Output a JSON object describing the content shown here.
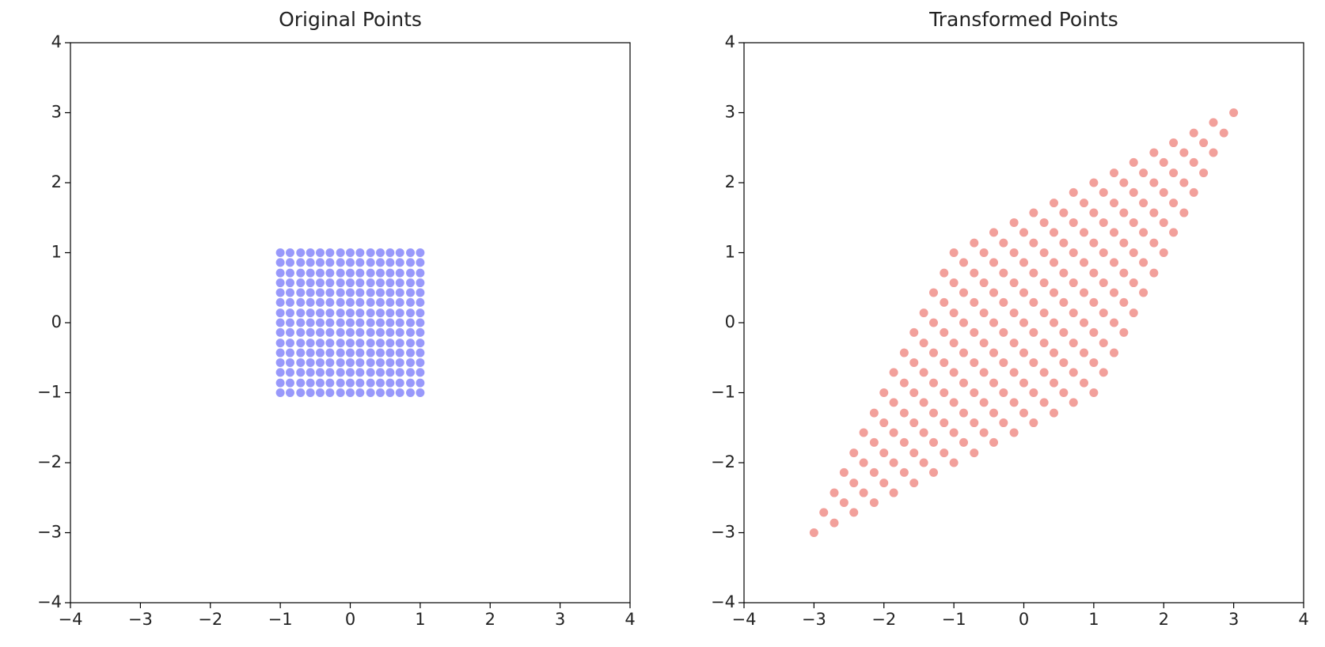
{
  "chart_data": [
    {
      "type": "scatter",
      "title": "Original Points",
      "color": "#9999fb",
      "xlim": [
        -4,
        4
      ],
      "ylim": [
        -4,
        4
      ],
      "xticks": [
        {
          "value": -4,
          "label": "−4"
        },
        {
          "value": -3,
          "label": "−3"
        },
        {
          "value": -2,
          "label": "−2"
        },
        {
          "value": -1,
          "label": "−1"
        },
        0,
        1,
        2,
        3,
        4
      ],
      "yticks": [
        {
          "value": -4,
          "label": "−4"
        },
        {
          "value": -3,
          "label": "−3"
        },
        {
          "value": -2,
          "label": "−2"
        },
        {
          "value": -1,
          "label": "−1"
        },
        0,
        1,
        2,
        3,
        4
      ],
      "x": [
        -1,
        -1,
        -1,
        -1,
        -1,
        -1,
        -1,
        -1,
        -1,
        -1,
        -1,
        -1,
        -1,
        -1,
        -1,
        -0.86,
        -0.86,
        -0.86,
        -0.86,
        -0.86,
        -0.86,
        -0.86,
        -0.86,
        -0.86,
        -0.86,
        -0.86,
        -0.86,
        -0.86,
        -0.86,
        -0.86,
        -0.71,
        -0.71,
        -0.71,
        -0.71,
        -0.71,
        -0.71,
        -0.71,
        -0.71,
        -0.71,
        -0.71,
        -0.71,
        -0.71,
        -0.71,
        -0.71,
        -0.71,
        -0.57,
        -0.57,
        -0.57,
        -0.57,
        -0.57,
        -0.57,
        -0.57,
        -0.57,
        -0.57,
        -0.57,
        -0.57,
        -0.57,
        -0.57,
        -0.57,
        -0.57,
        -0.43,
        -0.43,
        -0.43,
        -0.43,
        -0.43,
        -0.43,
        -0.43,
        -0.43,
        -0.43,
        -0.43,
        -0.43,
        -0.43,
        -0.43,
        -0.43,
        -0.43,
        -0.29,
        -0.29,
        -0.29,
        -0.29,
        -0.29,
        -0.29,
        -0.29,
        -0.29,
        -0.29,
        -0.29,
        -0.29,
        -0.29,
        -0.29,
        -0.29,
        -0.29,
        -0.14,
        -0.14,
        -0.14,
        -0.14,
        -0.14,
        -0.14,
        -0.14,
        -0.14,
        -0.14,
        -0.14,
        -0.14,
        -0.14,
        -0.14,
        -0.14,
        -0.14,
        0,
        0,
        0,
        0,
        0,
        0,
        0,
        0,
        0,
        0,
        0,
        0,
        0,
        0,
        0,
        0.14,
        0.14,
        0.14,
        0.14,
        0.14,
        0.14,
        0.14,
        0.14,
        0.14,
        0.14,
        0.14,
        0.14,
        0.14,
        0.14,
        0.14,
        0.29,
        0.29,
        0.29,
        0.29,
        0.29,
        0.29,
        0.29,
        0.29,
        0.29,
        0.29,
        0.29,
        0.29,
        0.29,
        0.29,
        0.29,
        0.43,
        0.43,
        0.43,
        0.43,
        0.43,
        0.43,
        0.43,
        0.43,
        0.43,
        0.43,
        0.43,
        0.43,
        0.43,
        0.43,
        0.43,
        0.57,
        0.57,
        0.57,
        0.57,
        0.57,
        0.57,
        0.57,
        0.57,
        0.57,
        0.57,
        0.57,
        0.57,
        0.57,
        0.57,
        0.57,
        0.71,
        0.71,
        0.71,
        0.71,
        0.71,
        0.71,
        0.71,
        0.71,
        0.71,
        0.71,
        0.71,
        0.71,
        0.71,
        0.71,
        0.71,
        0.86,
        0.86,
        0.86,
        0.86,
        0.86,
        0.86,
        0.86,
        0.86,
        0.86,
        0.86,
        0.86,
        0.86,
        0.86,
        0.86,
        0.86,
        1,
        1,
        1,
        1,
        1,
        1,
        1,
        1,
        1,
        1,
        1,
        1,
        1,
        1,
        1
      ],
      "y": [
        -1,
        -0.86,
        -0.71,
        -0.57,
        -0.43,
        -0.29,
        -0.14,
        0,
        0.14,
        0.29,
        0.43,
        0.57,
        0.71,
        0.86,
        1,
        -1,
        -0.86,
        -0.71,
        -0.57,
        -0.43,
        -0.29,
        -0.14,
        0,
        0.14,
        0.29,
        0.43,
        0.57,
        0.71,
        0.86,
        1,
        -1,
        -0.86,
        -0.71,
        -0.57,
        -0.43,
        -0.29,
        -0.14,
        0,
        0.14,
        0.29,
        0.43,
        0.57,
        0.71,
        0.86,
        1,
        -1,
        -0.86,
        -0.71,
        -0.57,
        -0.43,
        -0.29,
        -0.14,
        0,
        0.14,
        0.29,
        0.43,
        0.57,
        0.71,
        0.86,
        1,
        -1,
        -0.86,
        -0.71,
        -0.57,
        -0.43,
        -0.29,
        -0.14,
        0,
        0.14,
        0.29,
        0.43,
        0.57,
        0.71,
        0.86,
        1,
        -1,
        -0.86,
        -0.71,
        -0.57,
        -0.43,
        -0.29,
        -0.14,
        0,
        0.14,
        0.29,
        0.43,
        0.57,
        0.71,
        0.86,
        1,
        -1,
        -0.86,
        -0.71,
        -0.57,
        -0.43,
        -0.29,
        -0.14,
        0,
        0.14,
        0.29,
        0.43,
        0.57,
        0.71,
        0.86,
        1,
        -1,
        -0.86,
        -0.71,
        -0.57,
        -0.43,
        -0.29,
        -0.14,
        0,
        0.14,
        0.29,
        0.43,
        0.57,
        0.71,
        0.86,
        1,
        -1,
        -0.86,
        -0.71,
        -0.57,
        -0.43,
        -0.29,
        -0.14,
        0,
        0.14,
        0.29,
        0.43,
        0.57,
        0.71,
        0.86,
        1,
        -1,
        -0.86,
        -0.71,
        -0.57,
        -0.43,
        -0.29,
        -0.14,
        0,
        0.14,
        0.29,
        0.43,
        0.57,
        0.71,
        0.86,
        1,
        -1,
        -0.86,
        -0.71,
        -0.57,
        -0.43,
        -0.29,
        -0.14,
        0,
        0.14,
        0.29,
        0.43,
        0.57,
        0.71,
        0.86,
        1,
        -1,
        -0.86,
        -0.71,
        -0.57,
        -0.43,
        -0.29,
        -0.14,
        0,
        0.14,
        0.29,
        0.43,
        0.57,
        0.71,
        0.86,
        1,
        -1,
        -0.86,
        -0.71,
        -0.57,
        -0.43,
        -0.29,
        -0.14,
        0,
        0.14,
        0.29,
        0.43,
        0.57,
        0.71,
        0.86,
        1,
        -1,
        -0.86,
        -0.71,
        -0.57,
        -0.43,
        -0.29,
        -0.14,
        0,
        0.14,
        0.29,
        0.43,
        0.57,
        0.71,
        0.86,
        1,
        -1,
        -0.86,
        -0.71,
        -0.57,
        -0.43,
        -0.29,
        -0.14,
        0,
        0.14,
        0.29,
        0.43,
        0.57,
        0.71,
        0.86,
        1
      ]
    },
    {
      "type": "scatter",
      "title": "Transformed Points",
      "color": "#f2a09b",
      "xlim": [
        -4,
        4
      ],
      "ylim": [
        -4,
        4
      ],
      "xticks": [
        {
          "value": -4,
          "label": "−4"
        },
        {
          "value": -3,
          "label": "−3"
        },
        {
          "value": -2,
          "label": "−2"
        },
        {
          "value": -1,
          "label": "−1"
        },
        0,
        1,
        2,
        3,
        4
      ],
      "yticks": [
        {
          "value": -4,
          "label": "−4"
        },
        {
          "value": -3,
          "label": "−3"
        },
        {
          "value": -2,
          "label": "−2"
        },
        {
          "value": -1,
          "label": "−1"
        },
        0,
        1,
        2,
        3,
        4
      ],
      "x": [
        -3,
        -2.86,
        -2.71,
        -2.57,
        -2.43,
        -2.29,
        -2.14,
        -2,
        -1.86,
        -1.71,
        -1.57,
        -1.43,
        -1.29,
        -1.14,
        -1,
        -2.71,
        -2.57,
        -2.43,
        -2.29,
        -2.14,
        -2,
        -1.86,
        -1.71,
        -1.57,
        -1.43,
        -1.29,
        -1.14,
        -1,
        -0.86,
        -0.71,
        -2.43,
        -2.29,
        -2.14,
        -2,
        -1.86,
        -1.71,
        -1.57,
        -1.43,
        -1.29,
        -1.14,
        -1,
        -0.86,
        -0.71,
        -0.57,
        -0.43,
        -2.14,
        -2,
        -1.86,
        -1.71,
        -1.57,
        -1.43,
        -1.29,
        -1.14,
        -1,
        -0.86,
        -0.71,
        -0.57,
        -0.43,
        -0.29,
        -0.14,
        -1.86,
        -1.71,
        -1.57,
        -1.43,
        -1.29,
        -1.14,
        -1,
        -0.86,
        -0.71,
        -0.57,
        -0.43,
        -0.29,
        -0.14,
        0,
        0.14,
        -1.57,
        -1.43,
        -1.29,
        -1.14,
        -1,
        -0.86,
        -0.71,
        -0.57,
        -0.43,
        -0.29,
        -0.14,
        0,
        0.14,
        0.29,
        0.43,
        -1.29,
        -1.14,
        -1,
        -0.86,
        -0.71,
        -0.57,
        -0.43,
        -0.29,
        -0.14,
        0,
        0.14,
        0.29,
        0.43,
        0.57,
        0.71,
        -1,
        -0.86,
        -0.71,
        -0.57,
        -0.43,
        -0.29,
        -0.14,
        0,
        0.14,
        0.29,
        0.43,
        0.57,
        0.71,
        0.86,
        1,
        -0.71,
        -0.57,
        -0.43,
        -0.29,
        -0.14,
        0,
        0.14,
        0.29,
        0.43,
        0.57,
        0.71,
        0.86,
        1,
        1.14,
        1.29,
        -0.43,
        -0.29,
        -0.14,
        0,
        0.14,
        0.29,
        0.43,
        0.57,
        0.71,
        0.86,
        1,
        1.14,
        1.29,
        1.43,
        1.57,
        -0.14,
        0,
        0.14,
        0.29,
        0.43,
        0.57,
        0.71,
        0.86,
        1,
        1.14,
        1.29,
        1.43,
        1.57,
        1.71,
        1.86,
        0.14,
        0.29,
        0.43,
        0.57,
        0.71,
        0.86,
        1,
        1.14,
        1.29,
        1.43,
        1.57,
        1.71,
        1.86,
        2,
        2.14,
        0.43,
        0.57,
        0.71,
        0.86,
        1,
        1.14,
        1.29,
        1.43,
        1.57,
        1.71,
        1.86,
        2,
        2.14,
        2.29,
        2.43,
        0.71,
        0.86,
        1,
        1.14,
        1.29,
        1.43,
        1.57,
        1.71,
        1.86,
        2,
        2.14,
        2.29,
        2.43,
        2.57,
        2.71,
        1,
        1.14,
        1.29,
        1.43,
        1.57,
        1.71,
        1.86,
        2,
        2.14,
        2.29,
        2.43,
        2.57,
        2.71,
        2.86,
        3
      ],
      "y": [
        -3,
        -2.71,
        -2.43,
        -2.14,
        -1.86,
        -1.57,
        -1.29,
        -1,
        -0.71,
        -0.43,
        -0.14,
        0.14,
        0.43,
        0.71,
        1,
        -2.86,
        -2.57,
        -2.29,
        -2,
        -1.71,
        -1.43,
        -1.14,
        -0.86,
        -0.57,
        -0.29,
        0,
        0.29,
        0.57,
        0.86,
        1.14,
        -2.71,
        -2.43,
        -2.14,
        -1.86,
        -1.57,
        -1.29,
        -1,
        -0.71,
        -0.43,
        -0.14,
        0.14,
        0.43,
        0.71,
        1,
        1.29,
        -2.57,
        -2.29,
        -2,
        -1.71,
        -1.43,
        -1.14,
        -0.86,
        -0.57,
        -0.29,
        0,
        0.29,
        0.57,
        0.86,
        1.14,
        1.43,
        -2.43,
        -2.14,
        -1.86,
        -1.57,
        -1.29,
        -1,
        -0.71,
        -0.43,
        -0.14,
        0.14,
        0.43,
        0.71,
        1,
        1.29,
        1.57,
        -2.29,
        -2,
        -1.71,
        -1.43,
        -1.14,
        -0.86,
        -0.57,
        -0.29,
        0,
        0.29,
        0.57,
        0.86,
        1.14,
        1.43,
        1.71,
        -2.14,
        -1.86,
        -1.57,
        -1.29,
        -1,
        -0.71,
        -0.43,
        -0.14,
        0.14,
        0.43,
        0.71,
        1,
        1.29,
        1.57,
        1.86,
        -2,
        -1.71,
        -1.43,
        -1.14,
        -0.86,
        -0.57,
        -0.29,
        0,
        0.29,
        0.57,
        0.86,
        1.14,
        1.43,
        1.71,
        2,
        -1.86,
        -1.57,
        -1.29,
        -1,
        -0.71,
        -0.43,
        -0.14,
        0.14,
        0.43,
        0.71,
        1,
        1.29,
        1.57,
        1.86,
        2.14,
        -1.71,
        -1.43,
        -1.14,
        -0.86,
        -0.57,
        -0.29,
        0,
        0.29,
        0.57,
        0.86,
        1.14,
        1.43,
        1.71,
        2,
        2.29,
        -1.57,
        -1.29,
        -1,
        -0.71,
        -0.43,
        -0.14,
        0.14,
        0.43,
        0.71,
        1,
        1.29,
        1.57,
        1.86,
        2.14,
        2.43,
        -1.43,
        -1.14,
        -0.86,
        -0.57,
        -0.29,
        0,
        0.29,
        0.57,
        0.86,
        1.14,
        1.43,
        1.71,
        2,
        2.29,
        2.57,
        -1.29,
        -1,
        -0.71,
        -0.43,
        -0.14,
        0.14,
        0.43,
        0.71,
        1,
        1.29,
        1.57,
        1.86,
        2.14,
        2.43,
        2.71,
        -1.14,
        -0.86,
        -0.57,
        -0.29,
        0,
        0.29,
        0.57,
        0.86,
        1.14,
        1.43,
        1.71,
        2,
        2.29,
        2.57,
        2.86,
        -1,
        -0.71,
        -0.43,
        -0.14,
        0.14,
        0.43,
        0.71,
        1,
        1.29,
        1.57,
        1.86,
        2.14,
        2.43,
        2.71,
        3
      ]
    }
  ]
}
